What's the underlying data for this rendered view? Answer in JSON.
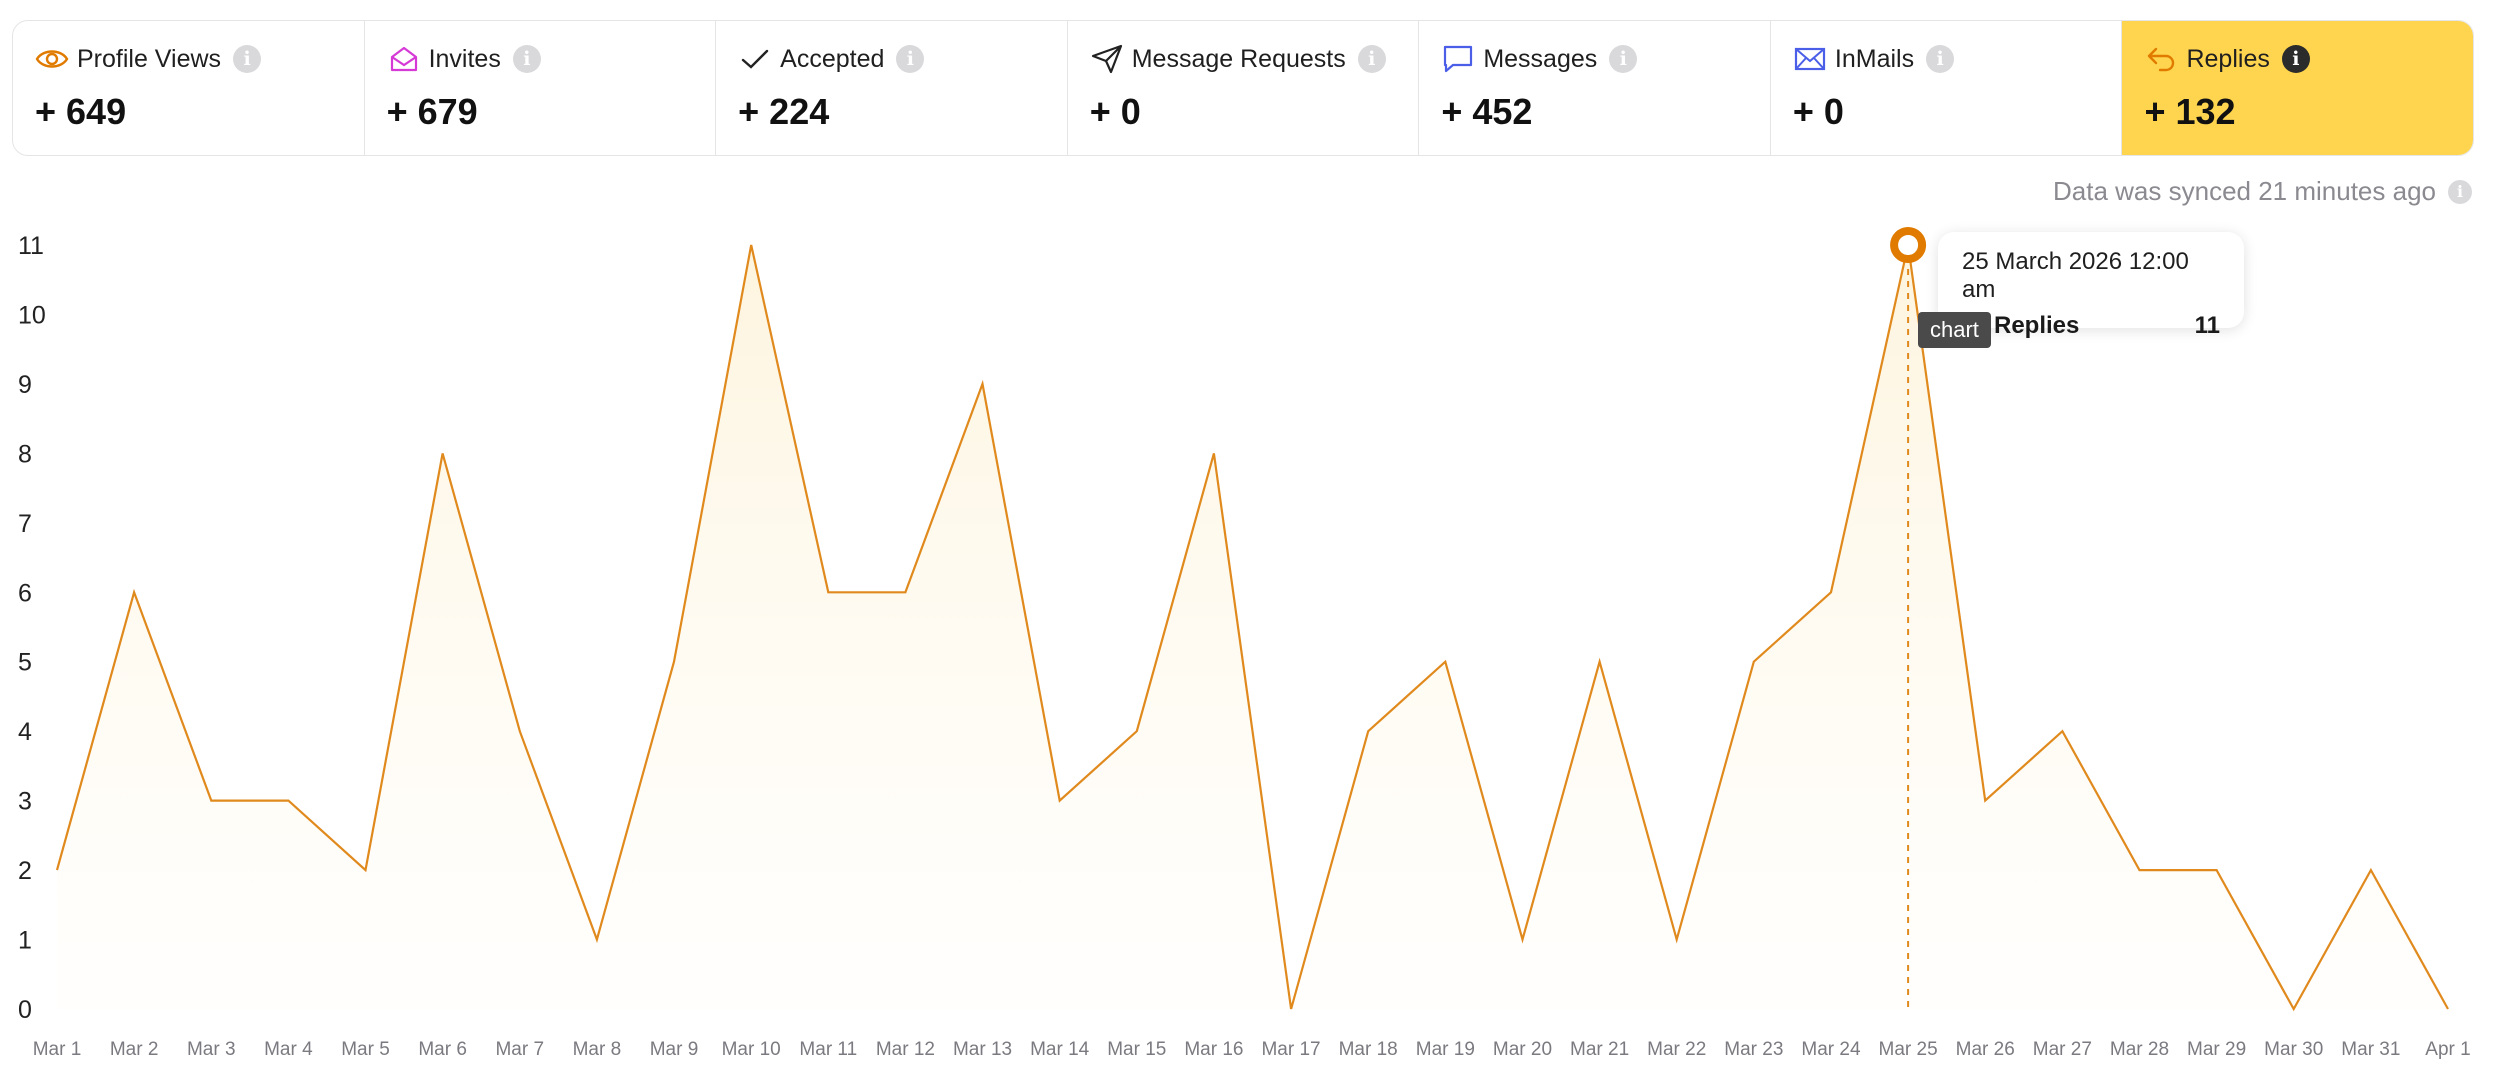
{
  "stats": [
    {
      "label": "Profile Views",
      "value": "+ 649",
      "icon": "eye-icon",
      "color": "#e07b00"
    },
    {
      "label": "Invites",
      "value": "+ 679",
      "icon": "envelope-open-icon",
      "color": "#d63ad6"
    },
    {
      "label": "Accepted",
      "value": "+ 224",
      "icon": "check-icon",
      "color": "#222222"
    },
    {
      "label": "Message Requests",
      "value": "+ 0",
      "icon": "paper-plane-icon",
      "color": "#222222"
    },
    {
      "label": "Messages",
      "value": "+ 452",
      "icon": "chat-bubble-icon",
      "color": "#4a5ee8"
    },
    {
      "label": "InMails",
      "value": "+ 0",
      "icon": "mail-icon",
      "color": "#4a5ee8"
    },
    {
      "label": "Replies",
      "value": "+ 132",
      "icon": "reply-icon",
      "color": "#e07b00",
      "active": true
    }
  ],
  "sync_text": "Data was synced 21 minutes ago",
  "tooltip": {
    "date": "25 March 2026 12:00 am",
    "series": "Replies",
    "value": "11"
  },
  "badge": "chart",
  "colors": {
    "line": "#e08a1e",
    "active_card": "#ffd54f",
    "axis_text": "#7a7a80"
  },
  "chart_data": {
    "type": "area",
    "x": [
      "Mar 1",
      "Mar 2",
      "Mar 3",
      "Mar 4",
      "Mar 5",
      "Mar 6",
      "Mar 7",
      "Mar 8",
      "Mar 9",
      "Mar 10",
      "Mar 11",
      "Mar 12",
      "Mar 13",
      "Mar 14",
      "Mar 15",
      "Mar 16",
      "Mar 17",
      "Mar 18",
      "Mar 19",
      "Mar 20",
      "Mar 21",
      "Mar 22",
      "Mar 23",
      "Mar 24",
      "Mar 25",
      "Mar 26",
      "Mar 27",
      "Mar 28",
      "Mar 29",
      "Mar 30",
      "Mar 31",
      "Apr 1"
    ],
    "series": [
      {
        "name": "Replies",
        "values": [
          2,
          6,
          3,
          3,
          2,
          8,
          4,
          1,
          5,
          11,
          6,
          6,
          9,
          3,
          4,
          8,
          0,
          4,
          5,
          1,
          5,
          1,
          5,
          6,
          11,
          3,
          4,
          2,
          2,
          0,
          2,
          0
        ]
      }
    ],
    "ylim": [
      0,
      11
    ],
    "yticks": [
      0,
      1,
      2,
      3,
      4,
      5,
      6,
      7,
      8,
      9,
      10,
      11
    ],
    "highlight_index": 24,
    "grid": false
  }
}
